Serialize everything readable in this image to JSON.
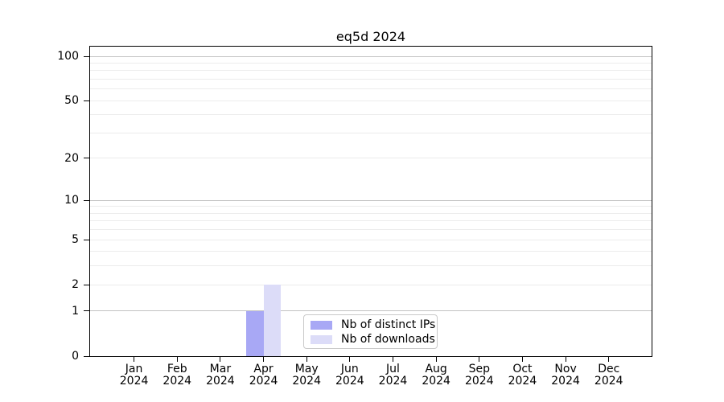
{
  "chart_data": {
    "type": "bar",
    "title": "eq5d 2024",
    "categories": [
      "Jan 2024",
      "Feb 2024",
      "Mar 2024",
      "Apr 2024",
      "May 2024",
      "Jun 2024",
      "Jul 2024",
      "Aug 2024",
      "Sep 2024",
      "Oct 2024",
      "Nov 2024",
      "Dec 2024"
    ],
    "series": [
      {
        "name": "Nb of distinct IPs",
        "color": "#a8a8f5",
        "values": [
          0,
          0,
          0,
          1,
          0,
          0,
          0,
          0,
          0,
          0,
          0,
          0
        ]
      },
      {
        "name": "Nb of downloads",
        "color": "#dcdcf8",
        "values": [
          0,
          0,
          0,
          2,
          0,
          0,
          0,
          0,
          0,
          0,
          0,
          0
        ]
      }
    ],
    "xlabel": "",
    "ylabel": "",
    "yscale": "log1p",
    "ylim": [
      0,
      110
    ],
    "yticks": [
      0,
      1,
      2,
      5,
      10,
      20,
      50,
      100
    ],
    "major_gridlines": [
      1,
      10,
      100
    ],
    "minor_gridlines": [
      2,
      3,
      4,
      5,
      6,
      7,
      8,
      9,
      20,
      30,
      40,
      50,
      60,
      70,
      80,
      90
    ],
    "grid": true,
    "legend_position": "lower center"
  },
  "colors": {
    "background": "#ffffff",
    "axis": "#000000",
    "grid_major": "#c3c3c3",
    "grid_minor": "#ececec",
    "legend_border": "#c9c9c9",
    "bar_distinct_ips": "#a8a8f5",
    "bar_downloads": "#dcdcf8"
  }
}
